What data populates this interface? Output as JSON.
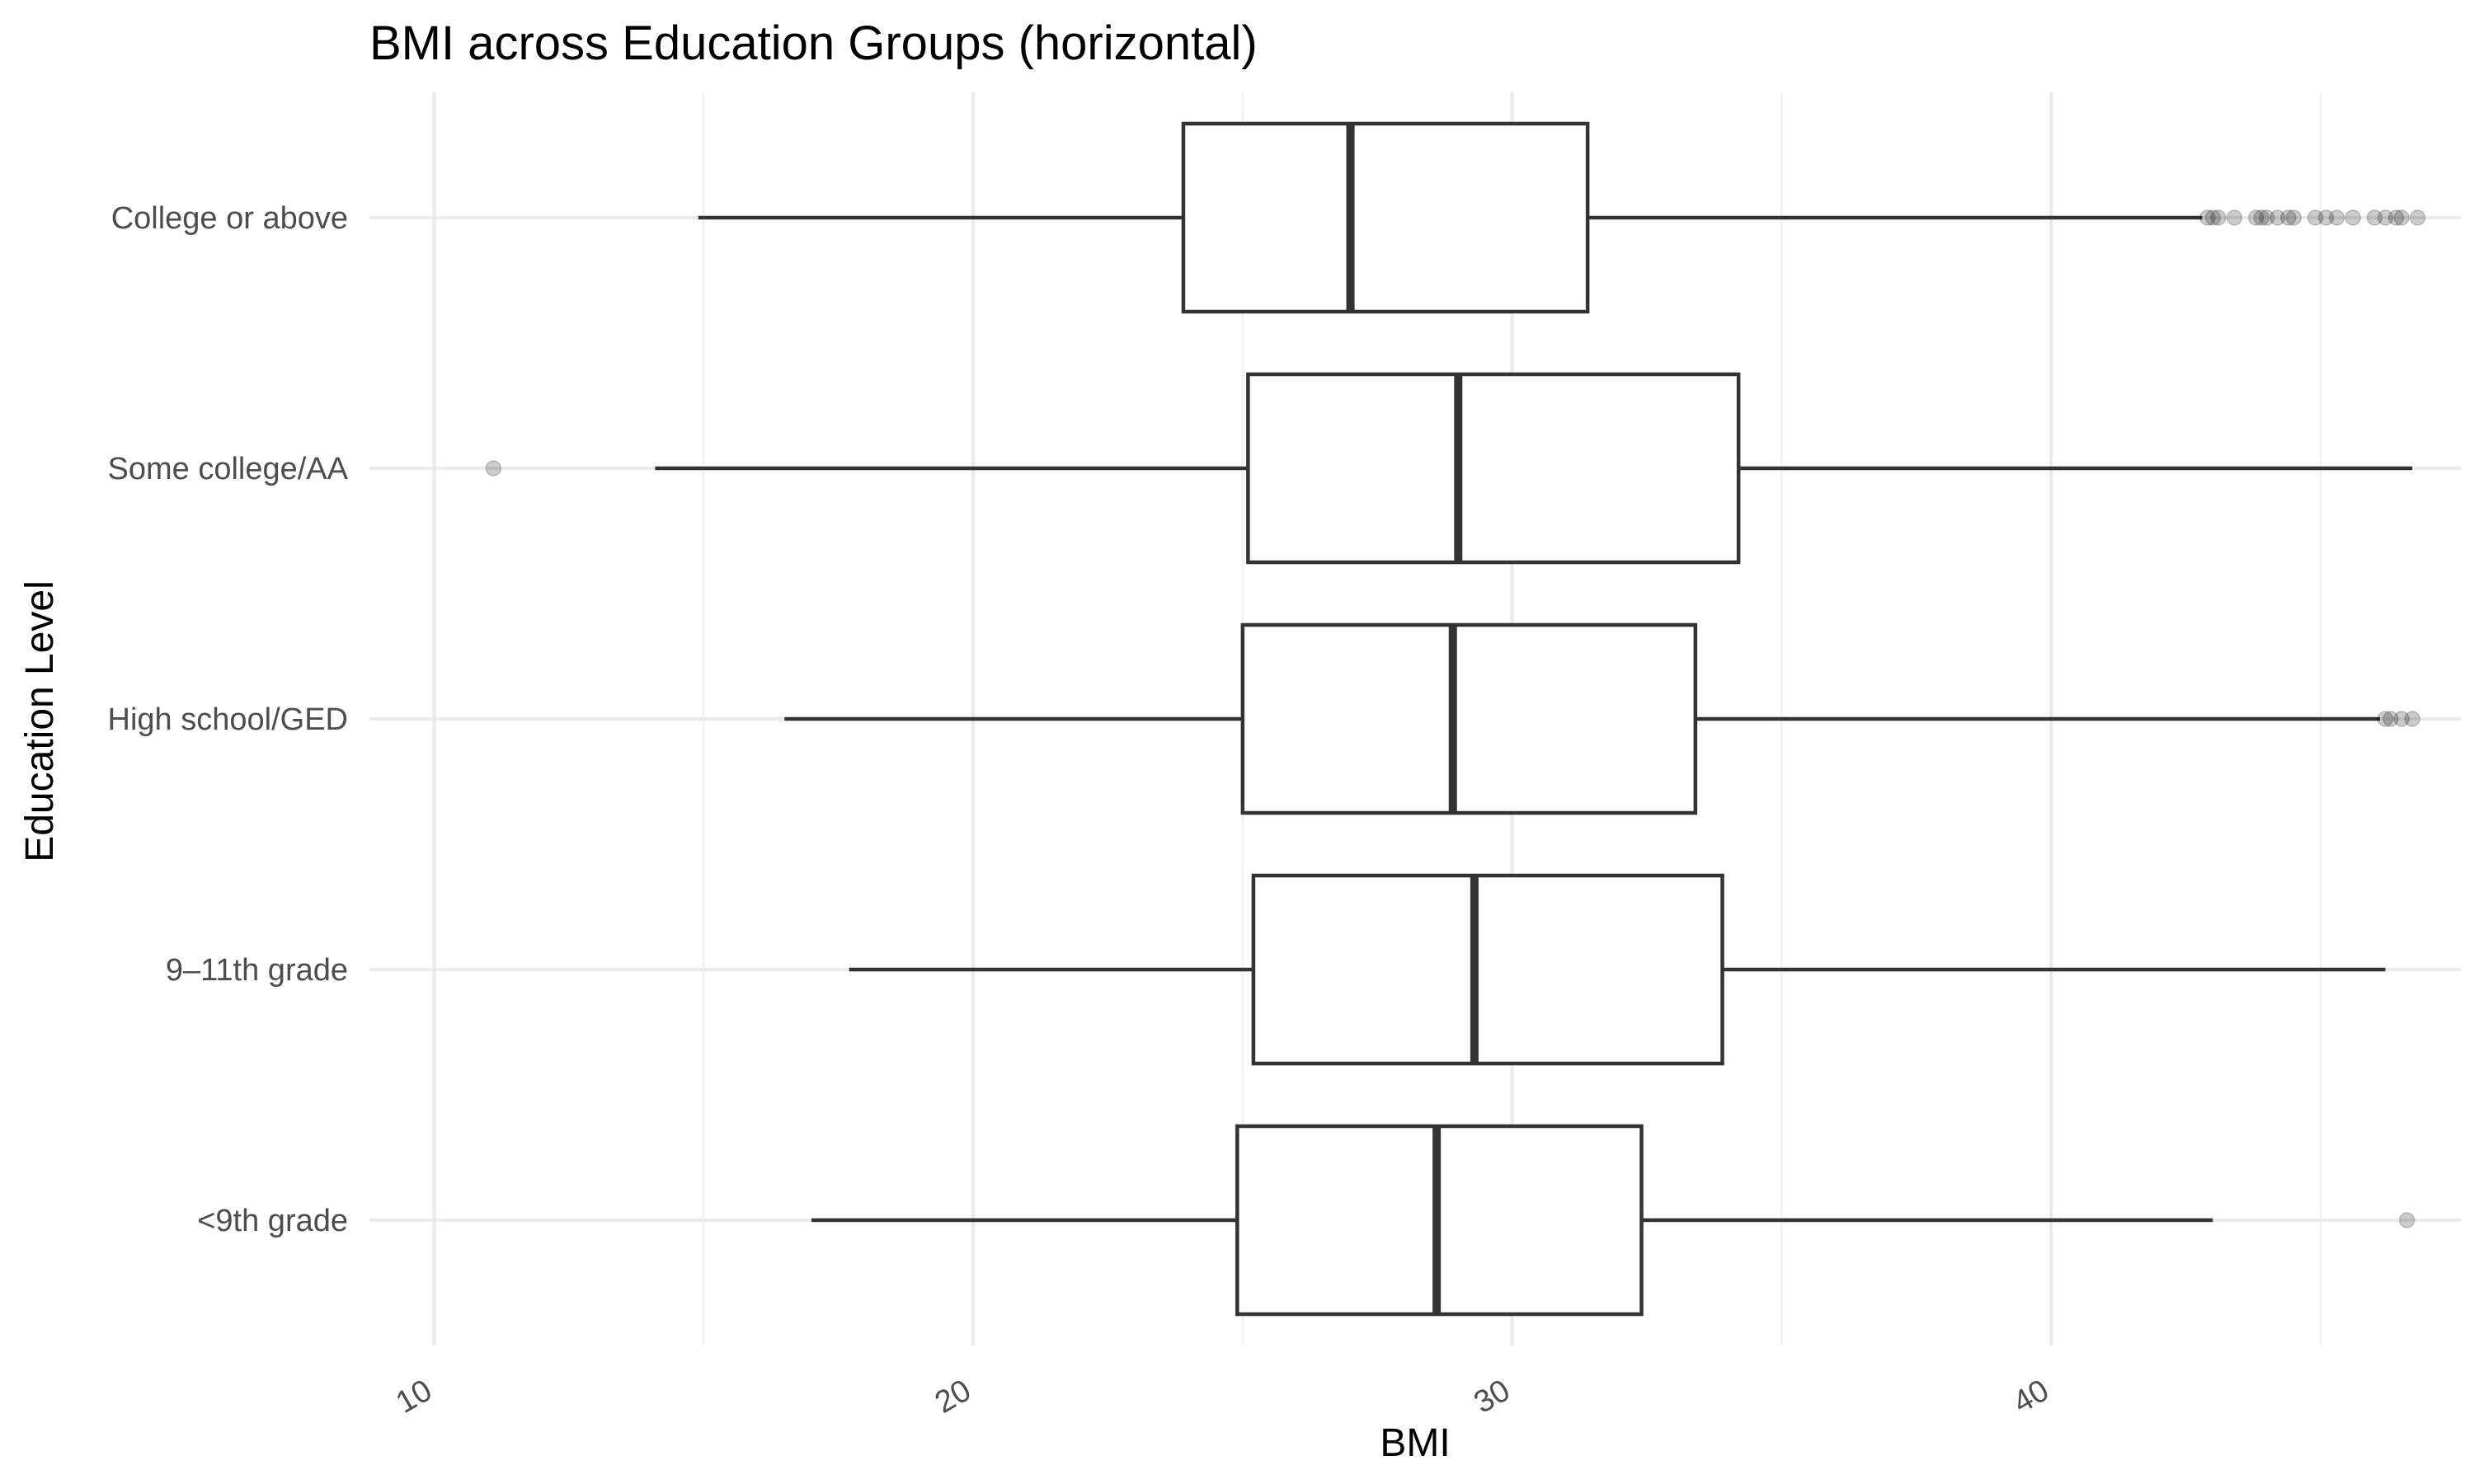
{
  "chart_data": {
    "type": "boxplot",
    "orientation": "horizontal",
    "title": "BMI across Education Groups (horizontal)",
    "xlabel": "BMI",
    "ylabel": "Education Level",
    "xlim": [
      8.8,
      47.6
    ],
    "x_ticks": [
      10,
      20,
      30,
      40
    ],
    "x_tick_labels": [
      "10",
      "20",
      "30",
      "40"
    ],
    "x_minor_ticks": [
      15,
      25,
      35,
      45
    ],
    "grid": true,
    "legend": "none",
    "categories": [
      "College or above",
      "Some college/AA",
      "High school/GED",
      "9–11th grade",
      "<9th grade"
    ],
    "boxes": [
      {
        "category": "College or above",
        "whisker_low": 14.9,
        "q1": 23.9,
        "median": 27.0,
        "q3": 31.4,
        "whisker_high": 42.8,
        "outliers": [
          42.9,
          43.0,
          43.1,
          43.4,
          43.8,
          43.9,
          44.0,
          44.2,
          44.4,
          44.5,
          44.9,
          45.1,
          45.3,
          45.6,
          46.0,
          46.2,
          46.4,
          46.5,
          46.8
        ]
      },
      {
        "category": "Some college/AA",
        "whisker_low": 14.1,
        "q1": 25.1,
        "median": 29.0,
        "q3": 34.2,
        "whisker_high": 46.7,
        "outliers": [
          11.1
        ]
      },
      {
        "category": "High school/GED",
        "whisker_low": 16.5,
        "q1": 25.0,
        "median": 28.9,
        "q3": 33.4,
        "whisker_high": 46.1,
        "outliers": [
          46.2,
          46.3,
          46.5,
          46.7
        ]
      },
      {
        "category": "9–11th grade",
        "whisker_low": 17.7,
        "q1": 25.2,
        "median": 29.3,
        "q3": 33.9,
        "whisker_high": 46.2,
        "outliers": []
      },
      {
        "category": "<9th grade",
        "whisker_low": 17.0,
        "q1": 24.9,
        "median": 28.6,
        "q3": 32.4,
        "whisker_high": 43.0,
        "outliers": [
          46.6
        ]
      }
    ]
  },
  "colors": {
    "background": "#ffffff",
    "box_stroke": "#333333",
    "grid_major": "#ebebeb",
    "outlier": "#000000"
  }
}
